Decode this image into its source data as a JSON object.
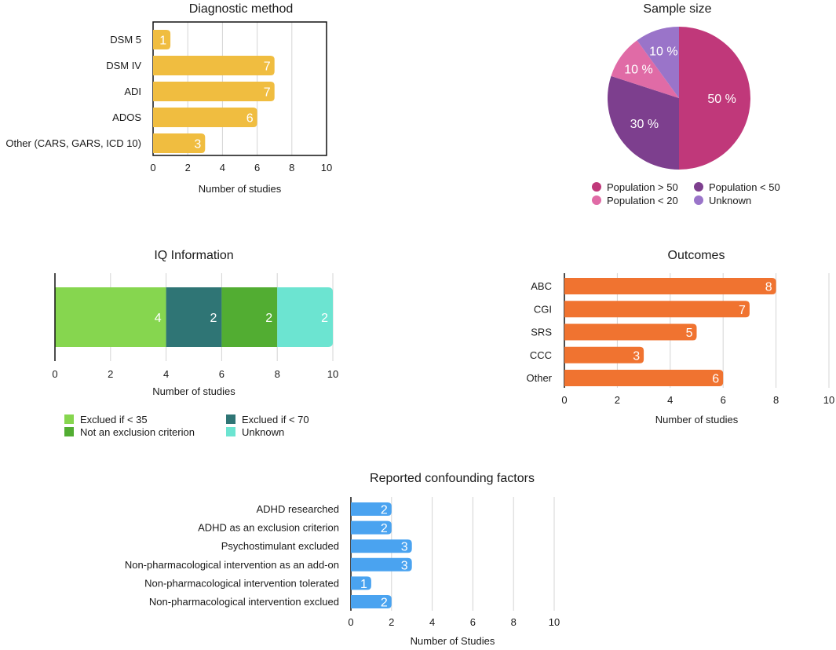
{
  "chart_data": [
    {
      "id": "diagnostic",
      "type": "bar",
      "orientation": "horizontal",
      "title": "Diagnostic method",
      "categories": [
        "DSM 5",
        "DSM IV",
        "ADI",
        "ADOS",
        "Other (CARS, GARS, ICD 10)"
      ],
      "values": [
        1,
        7,
        7,
        6,
        3
      ],
      "xlabel": "Number of studies",
      "xlim": [
        0,
        10
      ],
      "xticks": [
        0,
        2,
        4,
        6,
        8,
        10
      ],
      "color": "#f0bd40",
      "grid": true
    },
    {
      "id": "sample",
      "type": "pie",
      "title": "Sample size",
      "slices": [
        {
          "name": "Population > 50",
          "value": 50,
          "label": "50 %",
          "color": "#c0387a"
        },
        {
          "name": "Population < 50",
          "value": 30,
          "label": "30 %",
          "color": "#7d3f8e"
        },
        {
          "name": "Population < 20",
          "value": 10,
          "label": "10 %",
          "color": "#e06ba6"
        },
        {
          "name": "Unknown",
          "value": 10,
          "label": "10 %",
          "color": "#9a74c9"
        }
      ],
      "legend": [
        "Population > 50",
        "Population < 50",
        "Population < 20",
        "Unknown"
      ],
      "legend_position": "bottom"
    },
    {
      "id": "iq",
      "type": "bar",
      "orientation": "horizontal",
      "stacked": true,
      "title": "IQ Information",
      "series": [
        {
          "name": "Exclued if < 35",
          "value": 4,
          "color": "#86d64f"
        },
        {
          "name": "Exclued if < 70",
          "value": 2,
          "color": "#2f7575"
        },
        {
          "name": "Not an exclusion criterion",
          "value": 2,
          "color": "#52ad32"
        },
        {
          "name": "Unknown",
          "value": 2,
          "color": "#6ce4d1"
        }
      ],
      "xlabel": "Number of studies",
      "xlim": [
        0,
        10
      ],
      "xticks": [
        0,
        2,
        4,
        6,
        8,
        10
      ],
      "legend_position": "bottom",
      "grid": true
    },
    {
      "id": "outcomes",
      "type": "bar",
      "orientation": "horizontal",
      "title": "Outcomes",
      "categories": [
        "ABC",
        "CGI",
        "SRS",
        "CCC",
        "Other"
      ],
      "values": [
        8,
        7,
        5,
        3,
        6
      ],
      "xlabel": "Number of studies",
      "xlim": [
        0,
        10
      ],
      "xticks": [
        0,
        2,
        4,
        6,
        8,
        10
      ],
      "color": "#f07330",
      "grid": true
    },
    {
      "id": "confounding",
      "type": "bar",
      "orientation": "horizontal",
      "title": "Reported confounding factors",
      "categories": [
        "ADHD researched",
        "ADHD as an exclusion criterion",
        "Psychostimulant excluded",
        "Non-pharmacological intervention as an add-on",
        "Non-pharmacological intervention tolerated",
        "Non-pharmacological intervention exclued"
      ],
      "values": [
        2,
        2,
        3,
        3,
        1,
        2
      ],
      "xlabel": "Number of Studies",
      "xlim": [
        0,
        10
      ],
      "xticks": [
        0,
        2,
        4,
        6,
        8,
        10
      ],
      "color": "#4aa3f0",
      "grid": true
    }
  ]
}
